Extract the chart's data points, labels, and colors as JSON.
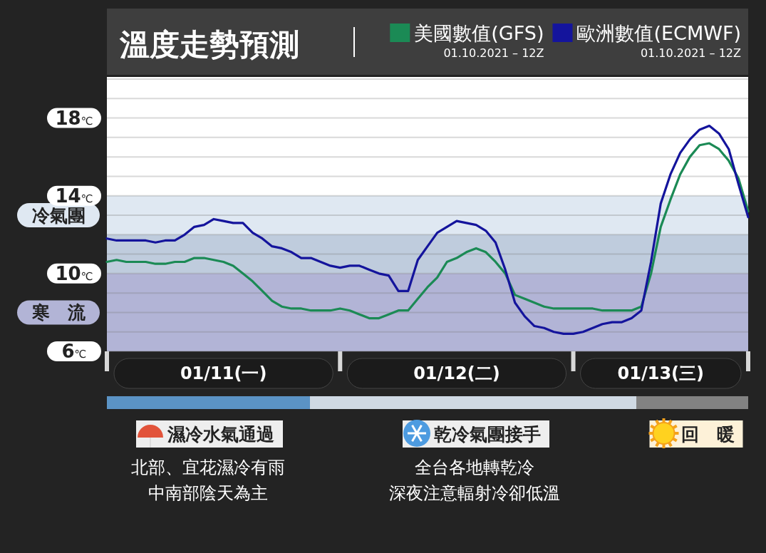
{
  "chart_data": {
    "type": "line",
    "title": "溫度走勢預測",
    "x": [
      "2021-01-11T00:00",
      "2021-01-11T01:00",
      "2021-01-11T02:00",
      "2021-01-11T03:00",
      "2021-01-11T04:00",
      "2021-01-11T05:00",
      "2021-01-11T06:00",
      "2021-01-11T07:00",
      "2021-01-11T08:00",
      "2021-01-11T09:00",
      "2021-01-11T10:00",
      "2021-01-11T11:00",
      "2021-01-11T12:00",
      "2021-01-11T13:00",
      "2021-01-11T14:00",
      "2021-01-11T15:00",
      "2021-01-11T16:00",
      "2021-01-11T17:00",
      "2021-01-11T18:00",
      "2021-01-11T19:00",
      "2021-01-11T20:00",
      "2021-01-11T21:00",
      "2021-01-11T22:00",
      "2021-01-11T23:00",
      "2021-01-12T00:00",
      "2021-01-12T01:00",
      "2021-01-12T02:00",
      "2021-01-12T03:00",
      "2021-01-12T04:00",
      "2021-01-12T05:00",
      "2021-01-12T06:00",
      "2021-01-12T07:00",
      "2021-01-12T08:00",
      "2021-01-12T09:00",
      "2021-01-12T10:00",
      "2021-01-12T11:00",
      "2021-01-12T12:00",
      "2021-01-12T13:00",
      "2021-01-12T14:00",
      "2021-01-12T15:00",
      "2021-01-12T16:00",
      "2021-01-12T17:00",
      "2021-01-12T18:00",
      "2021-01-12T19:00",
      "2021-01-12T20:00",
      "2021-01-12T21:00",
      "2021-01-12T22:00",
      "2021-01-12T23:00",
      "2021-01-13T00:00",
      "2021-01-13T01:00",
      "2021-01-13T02:00",
      "2021-01-13T03:00",
      "2021-01-13T04:00",
      "2021-01-13T05:00",
      "2021-01-13T06:00",
      "2021-01-13T07:00",
      "2021-01-13T08:00",
      "2021-01-13T09:00",
      "2021-01-13T10:00",
      "2021-01-13T11:00",
      "2021-01-13T12:00",
      "2021-01-13T13:00",
      "2021-01-13T14:00",
      "2021-01-13T15:00",
      "2021-01-13T16:00",
      "2021-01-13T17:00",
      "2021-01-13T18:00"
    ],
    "series": [
      {
        "name": "美國數值(GFS)",
        "color": "#1b8a55",
        "values": [
          10.6,
          10.7,
          10.6,
          10.6,
          10.6,
          10.5,
          10.5,
          10.6,
          10.6,
          10.8,
          10.8,
          10.7,
          10.6,
          10.4,
          10.0,
          9.6,
          9.1,
          8.6,
          8.3,
          8.2,
          8.2,
          8.1,
          8.1,
          8.1,
          8.2,
          8.1,
          7.9,
          7.7,
          7.7,
          7.9,
          8.1,
          8.1,
          8.7,
          9.3,
          9.8,
          10.6,
          10.8,
          11.1,
          11.3,
          11.1,
          10.6,
          10.0,
          8.9,
          8.7,
          8.5,
          8.3,
          8.2,
          8.2,
          8.2,
          8.2,
          8.2,
          8.1,
          8.1,
          8.1,
          8.1,
          8.3,
          10.0,
          12.4,
          13.8,
          15.1,
          16.0,
          16.6,
          16.7,
          16.4,
          15.8,
          14.9,
          13.2
        ]
      },
      {
        "name": "歐洲數值(ECMWF)",
        "color": "#14149c",
        "values": [
          11.8,
          11.7,
          11.7,
          11.7,
          11.7,
          11.6,
          11.7,
          11.7,
          12.0,
          12.4,
          12.5,
          12.8,
          12.7,
          12.6,
          12.6,
          12.1,
          11.8,
          11.4,
          11.3,
          11.1,
          10.8,
          10.8,
          10.6,
          10.4,
          10.3,
          10.4,
          10.4,
          10.2,
          10.0,
          9.9,
          9.1,
          9.1,
          10.7,
          11.4,
          12.1,
          12.4,
          12.7,
          12.6,
          12.5,
          12.2,
          11.6,
          10.2,
          8.5,
          7.8,
          7.3,
          7.2,
          7.0,
          6.9,
          6.9,
          7.0,
          7.2,
          7.4,
          7.5,
          7.5,
          7.7,
          8.1,
          10.6,
          13.6,
          15.1,
          16.2,
          16.9,
          17.4,
          17.6,
          17.2,
          16.4,
          14.6,
          12.9
        ]
      }
    ],
    "xlim": [
      "2021-01-11T00:00",
      "2021-01-13T18:00"
    ],
    "xticks": [
      {
        "value": "2021-01-11T12:00",
        "label": "01/11(一)"
      },
      {
        "value": "2021-01-12T12:00",
        "label": "01/12(二)"
      },
      {
        "value": "2021-01-13T09:00",
        "label": "01/13(三)"
      }
    ],
    "ylim": [
      6,
      20
    ],
    "yticks": [
      {
        "value": 6,
        "label": "6℃"
      },
      {
        "value": 7,
        "label": null
      },
      {
        "value": 8,
        "label": null
      },
      {
        "value": 9,
        "label": null
      },
      {
        "value": 10,
        "label": "10℃"
      },
      {
        "value": 11,
        "label": null
      },
      {
        "value": 12,
        "label": null
      },
      {
        "value": 13,
        "label": null
      },
      {
        "value": 14,
        "label": "14℃"
      },
      {
        "value": 15,
        "label": null
      },
      {
        "value": 16,
        "label": null
      },
      {
        "value": 17,
        "label": null
      },
      {
        "value": 18,
        "label": "18℃"
      },
      {
        "value": 19,
        "label": null
      },
      {
        "value": 20,
        "label": null
      }
    ],
    "grid": "y",
    "legend": "top right",
    "line_style": "solid",
    "marker": "none",
    "bands": [
      {
        "axis": "y",
        "from": 12,
        "to": 14,
        "label": "冷氣團",
        "color": "#dfe8f2"
      },
      {
        "axis": "y",
        "from": 10,
        "to": 12,
        "label": null,
        "color": "#bfccdd"
      },
      {
        "axis": "y",
        "from": 6,
        "to": 10,
        "label": "寒　流",
        "color": "#b2b4d6"
      }
    ],
    "annotations": [
      "01.10.2021 – 12Z",
      "01.10.2021 – 12Z",
      "濕冷水氣通過",
      "北部、宜花濕冷有雨",
      "中南部陰天為主",
      "乾冷氣團接手",
      "全台各地轉乾冷",
      "深夜注意輻射冷卻低溫",
      "回　暖"
    ]
  }
}
